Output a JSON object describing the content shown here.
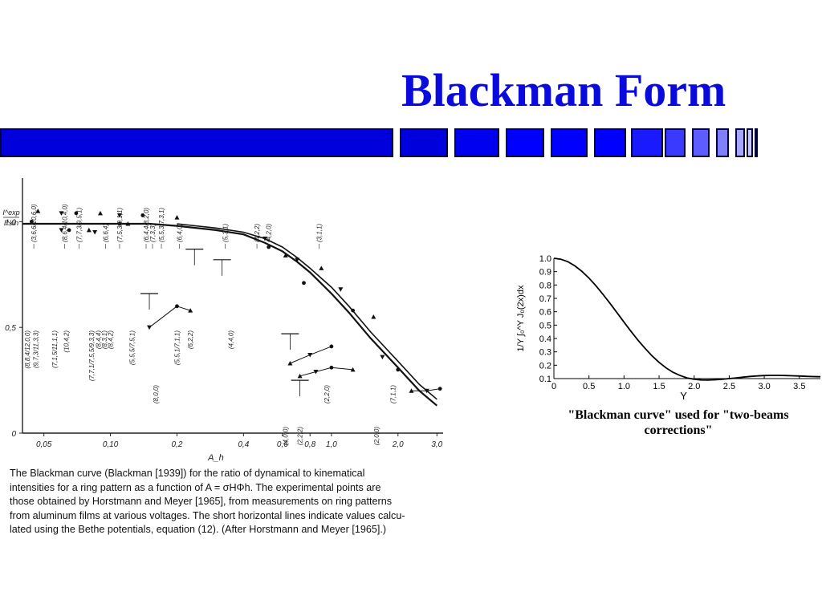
{
  "slide": {
    "title": "Blackman Form",
    "accent": "#0a0adc",
    "bar_colors": [
      "#0000dc",
      "#0000dc",
      "#0000f0",
      "#0000ff",
      "#0000ff",
      "#0000ff",
      "#1a1aff",
      "#3a3aff",
      "#5c5cff",
      "#8080ff",
      "#a6a6ff",
      "#c8c8ff",
      "#e0e0ff"
    ]
  },
  "left_caption": {
    "lines": [
      "The Blackman curve (Blackman [1939])  for the ratio of dynamical to kinematical",
      "intensities for a ring pattern as a function of A = σHΦh. The experimental points are",
      "those obtained by Horstmann and Meyer [1965], from measurements on ring patterns",
      "from aluminum films at various voltages. The short horizontal lines indicate values calcu-",
      "lated using the Bethe potentials, equation (12). (After Horstmann and Meyer [1965].)"
    ]
  },
  "right_caption": {
    "lines": [
      "\"Blackman curve\" used for \"two-beams",
      "corrections\""
    ]
  },
  "chart_data": [
    {
      "type": "line",
      "ylabel_top": "I^exp",
      "ylabel_bottom": "I^kin",
      "xlabel": "A_h",
      "x_scale": "log",
      "xlim": [
        0.04,
        3.2
      ],
      "ylim": [
        0,
        1.1
      ],
      "x_ticks": [
        0.05,
        0.1,
        0.2,
        0.4,
        0.6,
        0.8,
        1.0,
        2.0,
        3.0
      ],
      "x_tick_labels": [
        "0,05",
        "0,10",
        "0,2",
        "0,4",
        "0,6",
        "0,8",
        "1,0",
        "2,0",
        "3,0"
      ],
      "y_ticks": [
        0,
        0.5,
        1.0
      ],
      "y_tick_labels": [
        "0",
        "0,5",
        "1,0"
      ],
      "series": [
        {
          "x": [
            0.04,
            0.06,
            0.1,
            0.15,
            0.2,
            0.3,
            0.4,
            0.5,
            0.6,
            0.7,
            0.8,
            1.0,
            1.2,
            1.5,
            2.0,
            2.5,
            3.0
          ],
          "y": [
            0.99,
            0.99,
            0.99,
            0.99,
            0.98,
            0.96,
            0.94,
            0.9,
            0.86,
            0.81,
            0.76,
            0.66,
            0.57,
            0.45,
            0.31,
            0.2,
            0.13
          ]
        },
        {
          "x": [
            0.2,
            0.3,
            0.4,
            0.5,
            0.6,
            0.7,
            0.8,
            1.0,
            1.2,
            1.5,
            2.0,
            2.5,
            3.0
          ],
          "y": [
            0.99,
            0.97,
            0.95,
            0.92,
            0.88,
            0.83,
            0.78,
            0.69,
            0.6,
            0.48,
            0.34,
            0.23,
            0.16
          ]
        }
      ],
      "points": [
        {
          "x": 0.044,
          "y": 1.0
        },
        {
          "x": 0.047,
          "y": 1.05
        },
        {
          "x": 0.06,
          "y": 1.04
        },
        {
          "x": 0.07,
          "y": 1.04
        },
        {
          "x": 0.09,
          "y": 1.04
        },
        {
          "x": 0.11,
          "y": 1.03
        },
        {
          "x": 0.14,
          "y": 1.03
        },
        {
          "x": 0.2,
          "y": 1.02
        },
        {
          "x": 0.06,
          "y": 0.96
        },
        {
          "x": 0.065,
          "y": 0.96
        },
        {
          "x": 0.08,
          "y": 0.96
        },
        {
          "x": 0.085,
          "y": 0.95
        },
        {
          "x": 0.11,
          "y": 0.99
        },
        {
          "x": 0.12,
          "y": 0.99
        },
        {
          "x": 0.15,
          "y": 0.5
        },
        {
          "x": 0.2,
          "y": 0.6
        },
        {
          "x": 0.23,
          "y": 0.58
        },
        {
          "x": 0.5,
          "y": 0.92
        },
        {
          "x": 0.52,
          "y": 0.88
        },
        {
          "x": 0.62,
          "y": 0.84
        },
        {
          "x": 0.7,
          "y": 0.82
        },
        {
          "x": 0.75,
          "y": 0.71
        },
        {
          "x": 0.9,
          "y": 0.78
        },
        {
          "x": 1.1,
          "y": 0.68
        },
        {
          "x": 1.25,
          "y": 0.58
        },
        {
          "x": 1.55,
          "y": 0.55
        },
        {
          "x": 1.7,
          "y": 0.36
        },
        {
          "x": 2.0,
          "y": 0.3
        },
        {
          "x": 2.3,
          "y": 0.2
        },
        {
          "x": 2.7,
          "y": 0.2
        },
        {
          "x": 3.1,
          "y": 0.21
        },
        {
          "x": 0.65,
          "y": 0.33
        },
        {
          "x": 0.8,
          "y": 0.37
        },
        {
          "x": 1.0,
          "y": 0.41
        },
        {
          "x": 0.72,
          "y": 0.27
        },
        {
          "x": 0.85,
          "y": 0.29
        },
        {
          "x": 1.0,
          "y": 0.31
        },
        {
          "x": 1.25,
          "y": 0.3
        }
      ],
      "calc_lines": [
        {
          "x": 0.15,
          "y": 0.66
        },
        {
          "x": 0.24,
          "y": 0.87
        },
        {
          "x": 0.32,
          "y": 0.82
        },
        {
          "x": 0.65,
          "y": 0.47
        },
        {
          "x": 0.72,
          "y": 0.25
        }
      ],
      "reflection_labels": [
        {
          "x": 0.045,
          "label": "(3,6,6/10,6,0)",
          "pos": "top"
        },
        {
          "x": 0.062,
          "label": "(8,6,4/10,4,0)",
          "pos": "top"
        },
        {
          "x": 0.072,
          "label": "(7,7,3/9,5,1)",
          "pos": "top"
        },
        {
          "x": 0.095,
          "label": "(6,6,4)",
          "pos": "top"
        },
        {
          "x": 0.11,
          "label": "(7,5,3/9,1,1)",
          "pos": "top"
        },
        {
          "x": 0.145,
          "label": "(6,4,4/8,2,0)",
          "pos": "top"
        },
        {
          "x": 0.155,
          "label": "(7,3,3)",
          "pos": "top"
        },
        {
          "x": 0.17,
          "label": "(5,5,3/7,3,1)",
          "pos": "top"
        },
        {
          "x": 0.205,
          "label": "(6,4,0)",
          "pos": "top"
        },
        {
          "x": 0.33,
          "label": "(5,3,1)",
          "pos": "top"
        },
        {
          "x": 0.46,
          "label": "(4,2,2)",
          "pos": "top"
        },
        {
          "x": 0.52,
          "label": "(4,2,0)",
          "pos": "top"
        },
        {
          "x": 0.88,
          "label": "(3,1,1)",
          "pos": "top"
        },
        {
          "x": 0.042,
          "label": "(8,8,4/12,0,0)",
          "pos": "bottom"
        },
        {
          "x": 0.046,
          "label": "(9,7,3/11,3,3)",
          "pos": "bottom"
        },
        {
          "x": 0.056,
          "label": "(7,1,5/11,1,1)",
          "pos": "bottom"
        },
        {
          "x": 0.063,
          "label": "(10,4,2)",
          "pos": "bottom"
        },
        {
          "x": 0.082,
          "label": "(7,7,1/7,5,5/9,3,3)",
          "pos": "bottom"
        },
        {
          "x": 0.088,
          "label": "(8,4,4)",
          "pos": "bottom"
        },
        {
          "x": 0.094,
          "label": "(8,3,1)",
          "pos": "bottom"
        },
        {
          "x": 0.1,
          "label": "(8,4,2)",
          "pos": "bottom"
        },
        {
          "x": 0.125,
          "label": "(5,5,5/7,5,1)",
          "pos": "bottom"
        },
        {
          "x": 0.2,
          "label": "(5,5,1/7,1,1)",
          "pos": "bottom"
        },
        {
          "x": 0.23,
          "label": "(6,2,2)",
          "pos": "bottom"
        },
        {
          "x": 0.35,
          "label": "(4,4,0)",
          "pos": "bottom"
        },
        {
          "x": 0.16,
          "label": "(8,0,0)",
          "pos": "lower"
        },
        {
          "x": 0.95,
          "label": "(2,2,0)",
          "pos": "lower"
        },
        {
          "x": 1.9,
          "label": "(7,1,1)",
          "pos": "lower"
        },
        {
          "x": 1.6,
          "label": "(2,0,0)",
          "pos": "lowest"
        },
        {
          "x": 0.62,
          "label": "(4,0,0)",
          "pos": "lowest"
        },
        {
          "x": 0.72,
          "label": "(2,2,2)",
          "pos": "lowest"
        }
      ]
    },
    {
      "type": "line",
      "ylabel": "1/Υ ∫₀^Υ J₀(2x)dx",
      "xlabel": "Υ",
      "xlim": [
        0,
        3.8
      ],
      "ylim": [
        0.1,
        1.0
      ],
      "x_ticks": [
        0,
        0.5,
        1.0,
        1.5,
        2.0,
        2.5,
        3.0,
        3.5
      ],
      "x_tick_labels": [
        "0",
        "0.5",
        "1.0",
        "1.5",
        "2.0",
        "2.5",
        "3.0",
        "3.5"
      ],
      "y_ticks": [
        0.1,
        0.2,
        0.3,
        0.4,
        0.5,
        0.6,
        0.7,
        0.8,
        0.9,
        1.0
      ],
      "y_tick_labels": [
        "0.1",
        "0.2",
        "0.3",
        "0.4",
        "0.5",
        "0.6",
        "0.7",
        "0.8",
        "0.9",
        "1.0"
      ],
      "series": [
        {
          "x": [
            0,
            0.1,
            0.2,
            0.3,
            0.4,
            0.5,
            0.6,
            0.7,
            0.8,
            0.9,
            1.0,
            1.1,
            1.2,
            1.3,
            1.4,
            1.5,
            1.6,
            1.7,
            1.8,
            1.9,
            2.0,
            2.1,
            2.2,
            2.3,
            2.4,
            2.5,
            2.6,
            2.7,
            2.8,
            2.9,
            3.0,
            3.1,
            3.2,
            3.3,
            3.4,
            3.5,
            3.6,
            3.7,
            3.8
          ],
          "y": [
            1.0,
            0.993,
            0.974,
            0.943,
            0.902,
            0.852,
            0.794,
            0.73,
            0.663,
            0.593,
            0.522,
            0.453,
            0.387,
            0.326,
            0.27,
            0.221,
            0.18,
            0.147,
            0.123,
            0.105,
            0.095,
            0.09,
            0.089,
            0.091,
            0.095,
            0.1,
            0.105,
            0.111,
            0.116,
            0.12,
            0.123,
            0.124,
            0.124,
            0.123,
            0.121,
            0.119,
            0.117,
            0.115,
            0.114
          ]
        }
      ]
    }
  ]
}
